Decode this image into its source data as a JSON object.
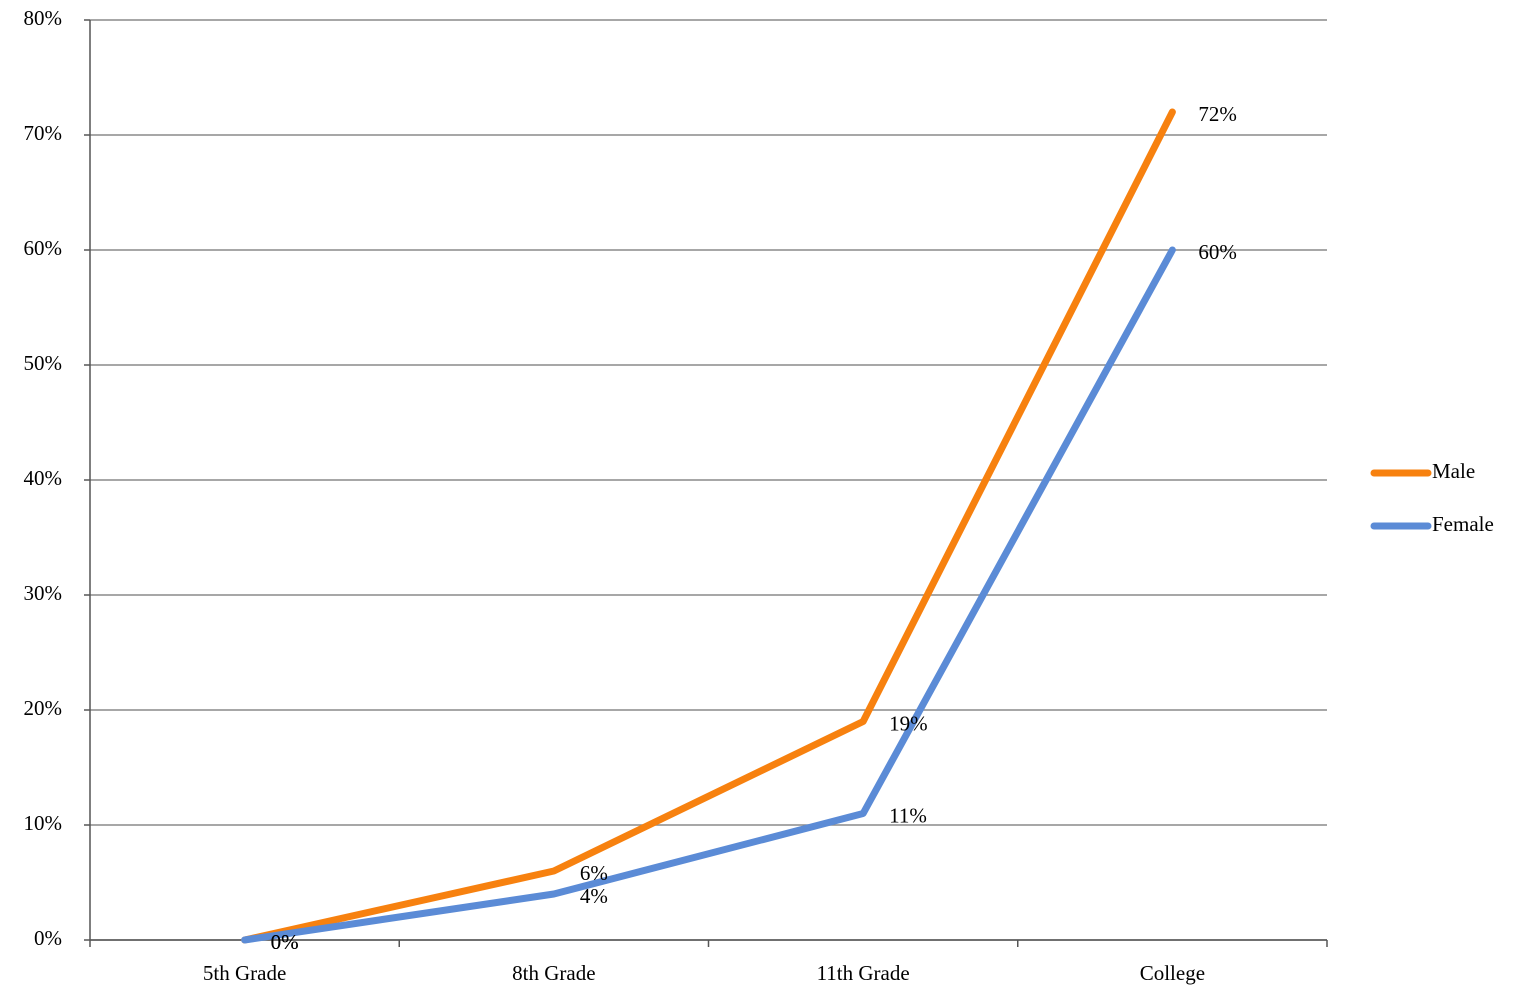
{
  "chart_data": {
    "type": "line",
    "categories": [
      "5th Grade",
      "8th Grade",
      "11th Grade",
      "College"
    ],
    "series": [
      {
        "name": "Male",
        "color": "#f7810f",
        "values": [
          0,
          6,
          19,
          72
        ],
        "value_labels": [
          "0%",
          "6%",
          "19%",
          "72%"
        ]
      },
      {
        "name": "Female",
        "color": "#5b8bd6",
        "values": [
          0,
          4,
          11,
          60
        ],
        "value_labels": [
          "0%",
          "4%",
          "11%",
          "60%"
        ]
      }
    ],
    "ylim": [
      0,
      80
    ],
    "yticks": [
      {
        "value": 0,
        "label": "0%"
      },
      {
        "value": 10,
        "label": "10%"
      },
      {
        "value": 20,
        "label": "20%"
      },
      {
        "value": 30,
        "label": "30%"
      },
      {
        "value": 40,
        "label": "40%"
      },
      {
        "value": 50,
        "label": "50%"
      },
      {
        "value": 60,
        "label": "60%"
      },
      {
        "value": 70,
        "label": "70%"
      },
      {
        "value": 80,
        "label": "80%"
      }
    ],
    "grid": true,
    "legend": "right"
  }
}
